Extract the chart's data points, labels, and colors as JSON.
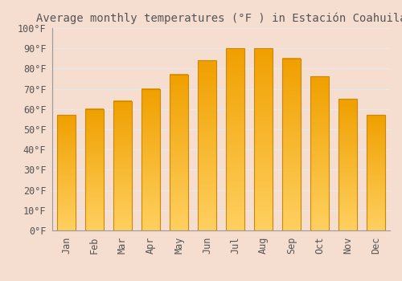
{
  "title": "Average monthly temperatures (°F ) in Estación Coahuila",
  "months": [
    "Jan",
    "Feb",
    "Mar",
    "Apr",
    "May",
    "Jun",
    "Jul",
    "Aug",
    "Sep",
    "Oct",
    "Nov",
    "Dec"
  ],
  "values": [
    57,
    60,
    64,
    70,
    77,
    84,
    90,
    90,
    85,
    76,
    65,
    57
  ],
  "bar_color_bottom": "#FFD060",
  "bar_color_top": "#F0A000",
  "bar_edge_color": "#CC8800",
  "background_color": "#F5DDD0",
  "grid_color": "#E8E8E8",
  "ylim": [
    0,
    100
  ],
  "yticks": [
    0,
    10,
    20,
    30,
    40,
    50,
    60,
    70,
    80,
    90,
    100
  ],
  "ytick_labels": [
    "0°F",
    "10°F",
    "20°F",
    "30°F",
    "40°F",
    "50°F",
    "60°F",
    "70°F",
    "80°F",
    "90°F",
    "100°F"
  ],
  "title_fontsize": 10,
  "tick_fontsize": 8.5,
  "font_color": "#555555"
}
